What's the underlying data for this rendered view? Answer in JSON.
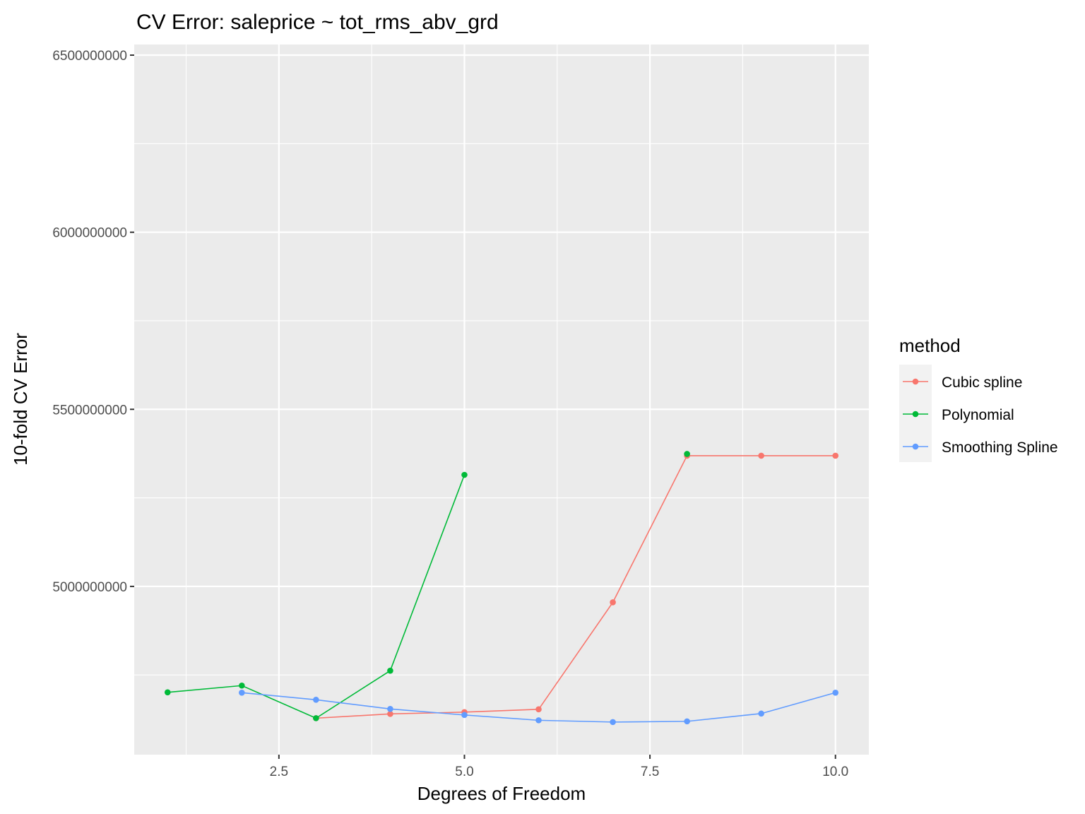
{
  "chart_data": {
    "type": "line",
    "title": "CV Error: saleprice ~ tot_rms_abv_grd",
    "xlabel": "Degrees of Freedom",
    "ylabel": "10-fold CV Error",
    "xlim": [
      0.55,
      10.45
    ],
    "ylim": [
      4525000000,
      6530000000
    ],
    "x_ticks": [
      2.5,
      5.0,
      7.5,
      10.0
    ],
    "x_tick_labels": [
      "2.5",
      "5.0",
      "7.5",
      "10.0"
    ],
    "x_minor": [
      1.25,
      3.75,
      6.25,
      8.75
    ],
    "y_ticks": [
      5000000000,
      5500000000,
      6000000000,
      6500000000
    ],
    "y_tick_labels": [
      "5000000000",
      "5500000000",
      "6000000000",
      "6500000000"
    ],
    "y_minor": [
      4750000000,
      5250000000,
      5750000000,
      6250000000
    ],
    "grid": true,
    "panel_background": "#ebebeb",
    "grid_color": "#ffffff",
    "legend": {
      "title": "method",
      "position": "right",
      "entries": [
        "Cubic spline",
        "Polynomial",
        "Smoothing Spline"
      ]
    },
    "series": [
      {
        "name": "Cubic spline",
        "color": "#f8766d",
        "x": [
          3,
          4,
          5,
          6,
          7,
          8,
          9,
          10
        ],
        "y": [
          4628000000,
          4640000000,
          4645000000,
          4653000000,
          4955000000,
          5369000000,
          5369000000,
          5369000000
        ]
      },
      {
        "name": "Polynomial",
        "color": "#00ba38",
        "x": [
          1,
          2,
          3,
          4,
          5,
          8
        ],
        "y": [
          4701000000,
          4720000000,
          4628000000,
          4762000000,
          5315000000,
          5374000000
        ],
        "connect_first_n": 5
      },
      {
        "name": "Smoothing Spline",
        "color": "#619cff",
        "x": [
          2,
          3,
          4,
          5,
          6,
          7,
          8,
          9,
          10
        ],
        "y": [
          4700000000,
          4680000000,
          4654000000,
          4637000000,
          4622000000,
          4617000000,
          4619000000,
          4641000000,
          4700000000
        ]
      }
    ]
  }
}
